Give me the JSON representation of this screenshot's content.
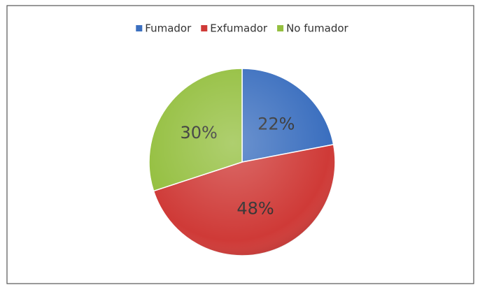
{
  "chart_data": {
    "type": "pie",
    "categories": [
      "Fumador",
      "Exfumador",
      "No fumador"
    ],
    "values": [
      22,
      48,
      30
    ],
    "value_labels": [
      "22%",
      "48%",
      "30%"
    ],
    "colors": [
      "#3b6fbf",
      "#cf3a37",
      "#94bf3f"
    ],
    "legend": "top"
  }
}
